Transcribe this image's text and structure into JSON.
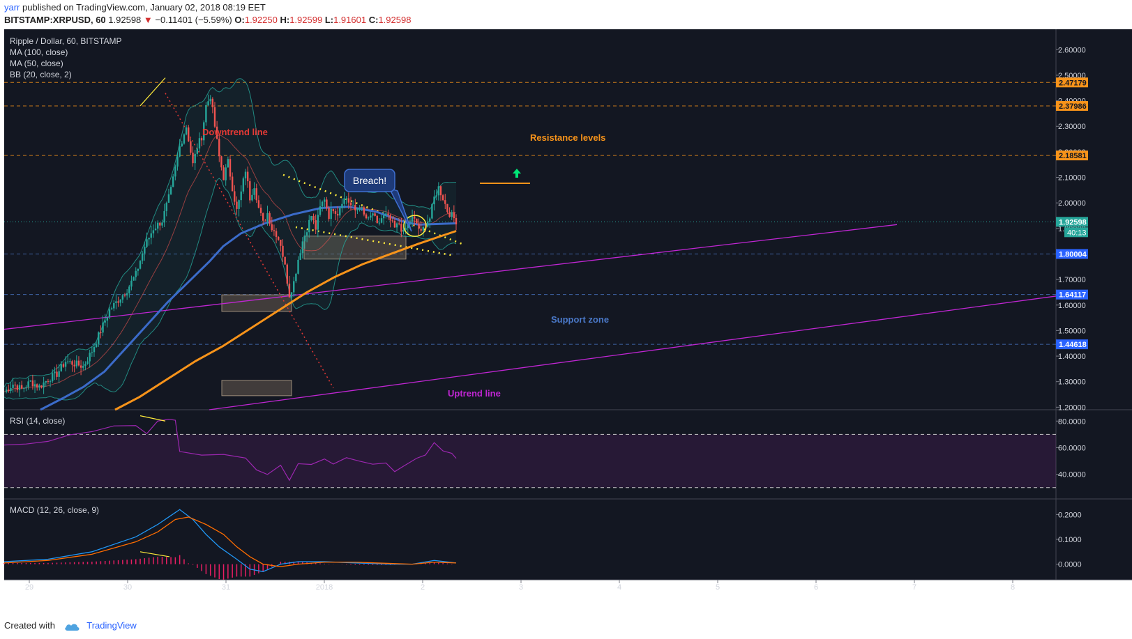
{
  "header": {
    "user": "yarr",
    "published_text": "published on TradingView.com, January 02, 2018 08:19 EET",
    "symbol": "BITSTAMP:XRPUSD, 60",
    "last": "1.92598",
    "change": "−0.11401 (−5.59%)",
    "o_label": "O:",
    "o": "1.92250",
    "h_label": "H:",
    "h": "1.92599",
    "l_label": "L:",
    "l": "1.91601",
    "c_label": "C:",
    "c": "1.92598"
  },
  "legend": {
    "title": "Ripple / Dollar, 60, BITSTAMP",
    "ma100": "MA (100, close)",
    "ma50": "MA (50, close)",
    "bb": "BB (20, close, 2)"
  },
  "panes": {
    "rsi_label": "RSI (14, close)",
    "macd_label": "MACD (12, 26, close, 9)"
  },
  "annotations": {
    "downtrend": "Downtrend line",
    "resistance": "Resistance levels",
    "breach": "Breach!",
    "support": "Support zone",
    "uptrend": "Uptrend line"
  },
  "price_badges": {
    "r1": "2.47179",
    "r2": "2.37986",
    "r3": "2.18581",
    "last": "1.92598",
    "countdown": "40:13",
    "s1": "1.80004",
    "s2": "1.64117",
    "s3": "1.44618"
  },
  "colors": {
    "background": "#131722",
    "up": "#26a69a",
    "down": "#ef5350",
    "ma100": "#f7931a",
    "ma50": "#3b6bc9",
    "bb": "#26a69a",
    "resistance": "#f7931a",
    "support": "#4a78c8",
    "uptrend": "#c026d3",
    "downtrend": "#e53935",
    "triangle": "#ffeb3b",
    "rsi": "#9c27b0",
    "macd_line": "#2196f3",
    "signal_line": "#ff6d00",
    "histogram": "#e91e63"
  },
  "chart_data": {
    "type": "candlestick",
    "title": "Ripple / Dollar, 60, BITSTAMP",
    "x_ticks": [
      "29",
      "30",
      "31",
      "2018",
      "2",
      "3",
      "4",
      "5",
      "6",
      "7",
      "8"
    ],
    "price_axis": {
      "ticks": [
        "2.60000",
        "2.50000",
        "2.40000",
        "2.30000",
        "2.20000",
        "2.10000",
        "2.00000",
        "1.90000",
        "1.80000",
        "1.70000",
        "1.60000",
        "1.50000",
        "1.40000",
        "1.30000",
        "1.20000"
      ],
      "range": [
        1.19,
        2.68
      ]
    },
    "resistance_levels": [
      2.47179,
      2.37986,
      2.18581
    ],
    "support_levels": [
      1.80004,
      1.64117,
      1.44618
    ],
    "last_price": 1.92598,
    "price_path": [
      [
        0,
        1.26
      ],
      [
        4,
        1.29
      ],
      [
        8,
        1.27
      ],
      [
        12,
        1.3
      ],
      [
        16,
        1.28
      ],
      [
        20,
        1.31
      ],
      [
        24,
        1.33
      ],
      [
        28,
        1.38
      ],
      [
        32,
        1.37
      ],
      [
        36,
        1.36
      ],
      [
        40,
        1.42
      ],
      [
        44,
        1.5
      ],
      [
        48,
        1.58
      ],
      [
        52,
        1.62
      ],
      [
        56,
        1.66
      ],
      [
        60,
        1.72
      ],
      [
        64,
        1.83
      ],
      [
        68,
        1.9
      ],
      [
        72,
        1.93
      ],
      [
        76,
        2.05
      ],
      [
        80,
        2.22
      ],
      [
        83,
        2.3
      ],
      [
        86,
        2.15
      ],
      [
        88,
        2.22
      ],
      [
        90,
        2.26
      ],
      [
        92,
        2.38
      ],
      [
        94,
        2.42
      ],
      [
        96,
        2.3
      ],
      [
        98,
        2.18
      ],
      [
        100,
        2.1
      ],
      [
        102,
        2.16
      ],
      [
        104,
        2.06
      ],
      [
        106,
        1.97
      ],
      [
        108,
        2.04
      ],
      [
        110,
        2.13
      ],
      [
        112,
        2.02
      ],
      [
        114,
        2.07
      ],
      [
        116,
        1.98
      ],
      [
        118,
        1.92
      ],
      [
        120,
        1.96
      ],
      [
        122,
        1.9
      ],
      [
        124,
        1.88
      ],
      [
        126,
        1.84
      ],
      [
        128,
        1.75
      ],
      [
        130,
        1.64
      ],
      [
        132,
        1.69
      ],
      [
        134,
        1.78
      ],
      [
        136,
        1.85
      ],
      [
        138,
        1.9
      ],
      [
        140,
        1.95
      ],
      [
        142,
        1.9
      ],
      [
        144,
        1.98
      ],
      [
        146,
        2.02
      ],
      [
        148,
        1.95
      ],
      [
        150,
        1.98
      ],
      [
        152,
        1.96
      ],
      [
        154,
        2.01
      ],
      [
        156,
        2.02
      ],
      [
        158,
        1.99
      ],
      [
        160,
        1.97
      ],
      [
        162,
        1.99
      ],
      [
        164,
        1.95
      ],
      [
        166,
        1.93
      ],
      [
        168,
        1.96
      ],
      [
        170,
        1.91
      ],
      [
        172,
        1.94
      ],
      [
        174,
        1.95
      ],
      [
        176,
        1.93
      ],
      [
        178,
        1.9
      ],
      [
        180,
        1.92
      ],
      [
        182,
        1.88
      ],
      [
        184,
        1.92
      ],
      [
        186,
        1.94
      ],
      [
        188,
        1.92
      ],
      [
        190,
        1.88
      ],
      [
        192,
        1.92
      ],
      [
        194,
        1.94
      ],
      [
        196,
        2.02
      ],
      [
        198,
        2.06
      ],
      [
        200,
        2.02
      ],
      [
        202,
        1.97
      ],
      [
        204,
        1.95
      ],
      [
        206,
        1.93
      ]
    ],
    "rsi": {
      "ticks": [
        "80.0000",
        "60.0000",
        "40.0000"
      ],
      "bands": [
        70,
        30
      ],
      "path": [
        [
          0,
          62
        ],
        [
          10,
          64
        ],
        [
          20,
          67
        ],
        [
          30,
          72
        ],
        [
          40,
          74
        ],
        [
          50,
          77
        ],
        [
          60,
          78
        ],
        [
          65,
          70
        ],
        [
          70,
          83
        ],
        [
          75,
          83
        ],
        [
          78,
          78
        ],
        [
          80,
          58
        ],
        [
          90,
          55
        ],
        [
          100,
          54
        ],
        [
          110,
          50
        ],
        [
          115,
          45
        ],
        [
          120,
          42
        ],
        [
          126,
          44
        ],
        [
          130,
          38
        ],
        [
          134,
          46
        ],
        [
          140,
          50
        ],
        [
          146,
          52
        ],
        [
          150,
          50
        ],
        [
          156,
          52
        ],
        [
          162,
          49
        ],
        [
          168,
          48
        ],
        [
          174,
          46
        ],
        [
          178,
          44
        ],
        [
          182,
          48
        ],
        [
          188,
          52
        ],
        [
          192,
          55
        ],
        [
          196,
          62
        ],
        [
          200,
          56
        ],
        [
          204,
          54
        ],
        [
          206,
          52
        ]
      ]
    },
    "macd": {
      "ticks": [
        "0.2000",
        "0.1000",
        "0.0000"
      ],
      "macd_path": [
        [
          0,
          0.01
        ],
        [
          20,
          0.02
        ],
        [
          40,
          0.05
        ],
        [
          60,
          0.11
        ],
        [
          70,
          0.16
        ],
        [
          75,
          0.19
        ],
        [
          80,
          0.22
        ],
        [
          86,
          0.18
        ],
        [
          92,
          0.12
        ],
        [
          98,
          0.07
        ],
        [
          106,
          0.02
        ],
        [
          112,
          -0.02
        ],
        [
          118,
          -0.03
        ],
        [
          126,
          0.0
        ],
        [
          134,
          0.01
        ],
        [
          146,
          0.01
        ],
        [
          160,
          0.005
        ],
        [
          176,
          0.0
        ],
        [
          186,
          0.0
        ],
        [
          196,
          0.015
        ],
        [
          206,
          0.005
        ]
      ],
      "signal_path": [
        [
          0,
          0.005
        ],
        [
          20,
          0.015
        ],
        [
          40,
          0.04
        ],
        [
          60,
          0.09
        ],
        [
          70,
          0.13
        ],
        [
          78,
          0.18
        ],
        [
          84,
          0.19
        ],
        [
          92,
          0.16
        ],
        [
          100,
          0.12
        ],
        [
          106,
          0.07
        ],
        [
          112,
          0.03
        ],
        [
          118,
          0.0
        ],
        [
          126,
          -0.01
        ],
        [
          134,
          0.0
        ],
        [
          146,
          0.008
        ],
        [
          160,
          0.008
        ],
        [
          176,
          0.003
        ],
        [
          186,
          0.0
        ],
        [
          196,
          0.008
        ],
        [
          206,
          0.005
        ]
      ]
    }
  },
  "footer": {
    "created_with": "Created with",
    "brand": "TradingView"
  }
}
